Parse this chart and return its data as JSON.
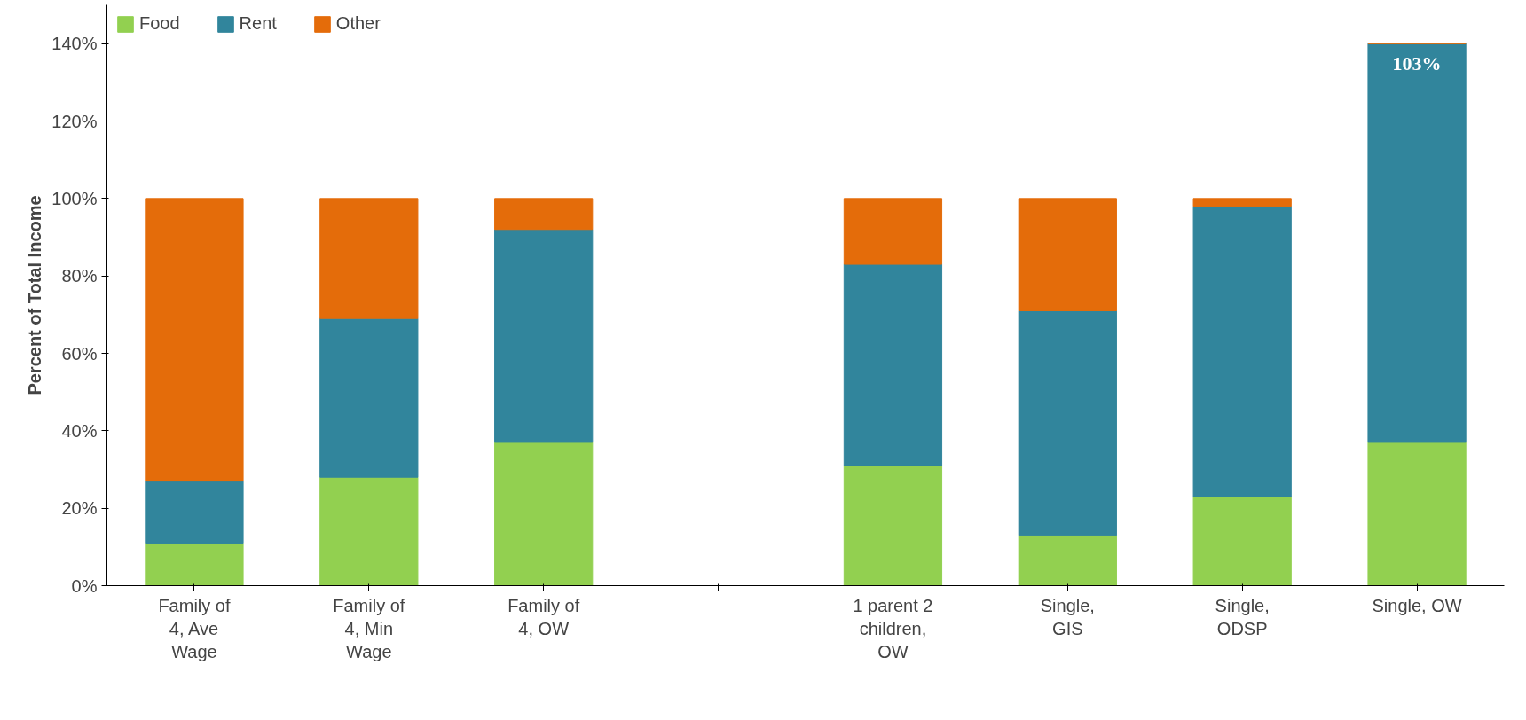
{
  "chart_data": {
    "type": "bar",
    "stacked": true,
    "ylabel": "Percent of Total Income",
    "categories": [
      "Family of 4, Ave Wage",
      "Family of 4, Min Wage",
      "Family of 4, OW",
      null,
      "1 parent 2 children, OW",
      "Single, GIS",
      "Single, ODSP",
      "Single, OW"
    ],
    "series": [
      {
        "name": "Food",
        "color": "#92d050",
        "values": [
          11,
          28,
          37,
          null,
          31,
          13,
          23,
          37
        ]
      },
      {
        "name": "Rent",
        "color": "#31859c",
        "values": [
          16,
          41,
          55,
          null,
          52,
          58,
          75,
          103
        ],
        "value_labels": [
          null,
          null,
          null,
          null,
          null,
          null,
          null,
          "103%"
        ]
      },
      {
        "name": "Other",
        "color": "#e46c0a",
        "values": [
          73,
          31,
          8,
          null,
          17,
          29,
          2,
          0
        ]
      }
    ],
    "ylim": [
      0,
      150
    ],
    "yticks": [
      {
        "value": 0,
        "label": "0%"
      },
      {
        "value": 20,
        "label": "20%"
      },
      {
        "value": 40,
        "label": "40%"
      },
      {
        "value": 60,
        "label": "60%"
      },
      {
        "value": 80,
        "label": "80%"
      },
      {
        "value": 100,
        "label": "100%"
      },
      {
        "value": 120,
        "label": "120%"
      },
      {
        "value": 140,
        "label": "140%"
      }
    ],
    "grid": false,
    "legend": "top left"
  }
}
